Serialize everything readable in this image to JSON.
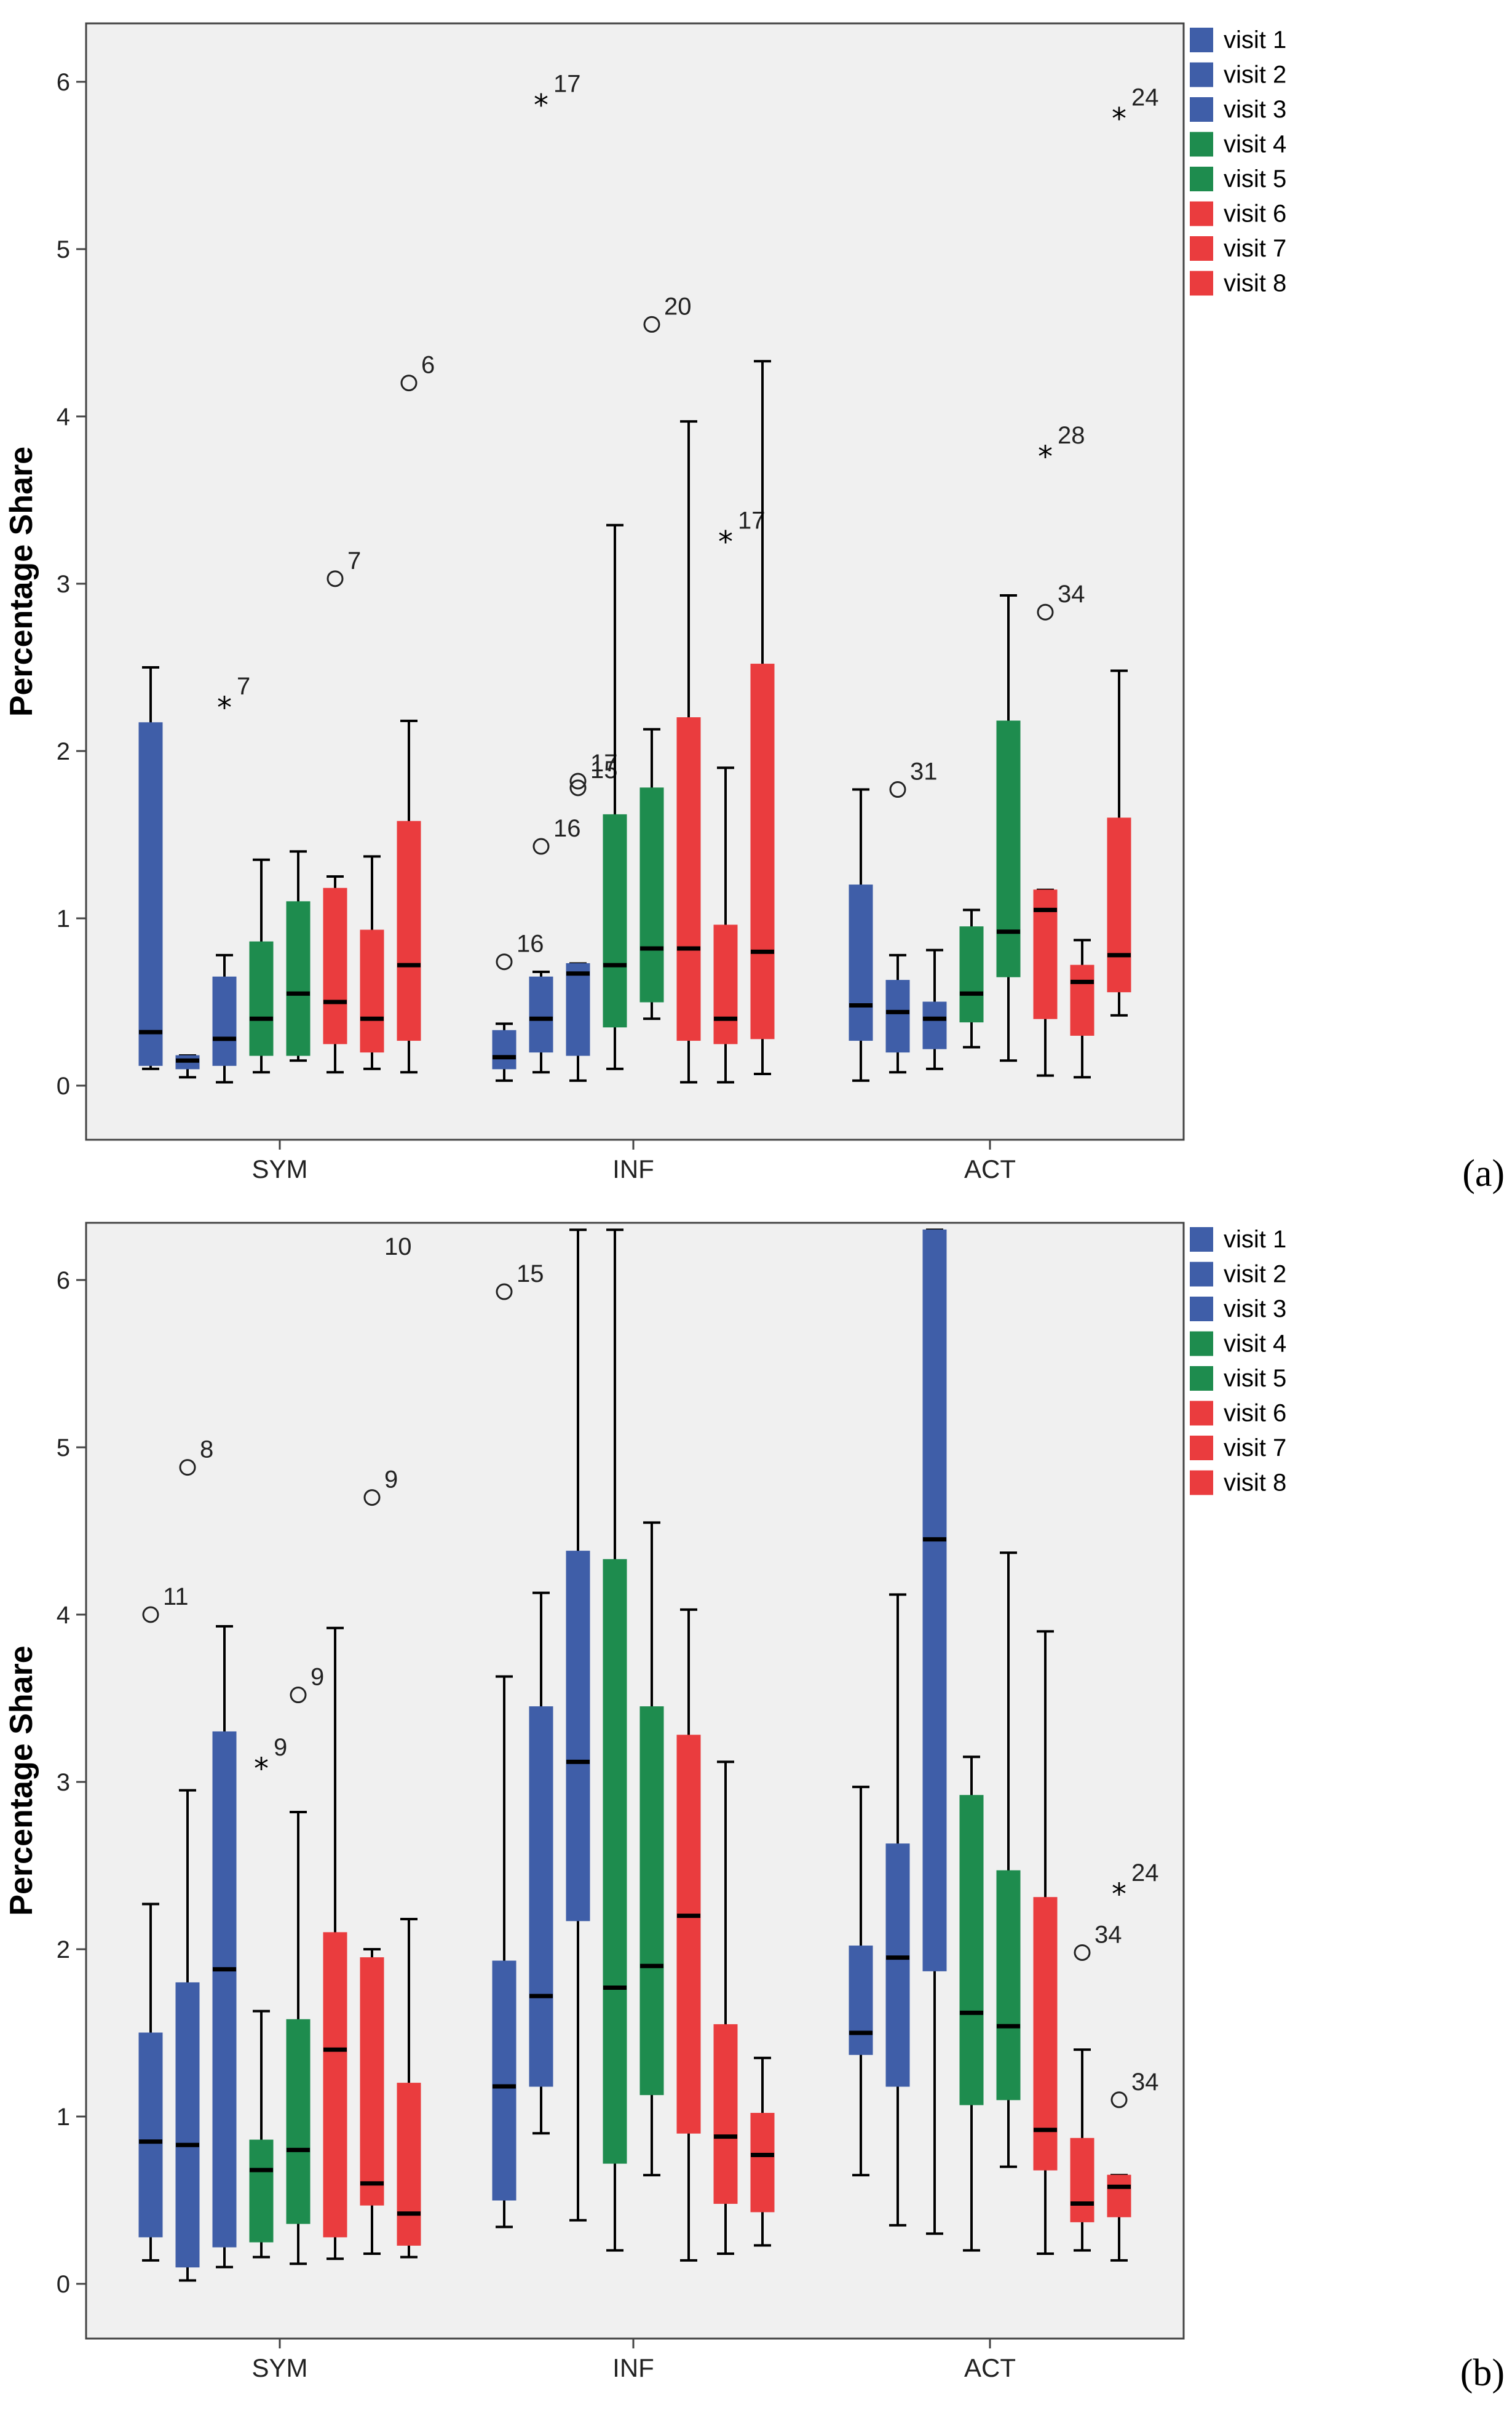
{
  "figure": {
    "colors": {
      "blue": "#3f5ea8",
      "green": "#1e8c4e",
      "red": "#ea3c3e",
      "plot_background": "#f0f0f0",
      "frame": "#444444"
    },
    "legend_labels": [
      "visit 1",
      "visit 2",
      "visit 3",
      "visit 4",
      "visit 5",
      "visit 6",
      "visit 7",
      "visit 8"
    ]
  },
  "chart_data": [
    {
      "type": "boxplot",
      "panel_label": "(a)",
      "ylabel": "Percentage Share",
      "ylim": [
        -0.3,
        6.3
      ],
      "yticks": [
        "0",
        "1",
        "2",
        "3",
        "4",
        "5",
        "6"
      ],
      "categories": [
        "SYM",
        "INF",
        "ACT"
      ],
      "legend": [
        "visit 1",
        "visit 2",
        "visit 3",
        "visit 4",
        "visit 5",
        "visit 6",
        "visit 7",
        "visit 8"
      ],
      "groups": [
        {
          "category": "SYM",
          "boxes": [
            {
              "name": "visit 1",
              "color": "#3f5ea8",
              "wlo": 0.1,
              "q1": 0.12,
              "med": 0.32,
              "q3": 2.17,
              "whi": 2.5,
              "outliers": []
            },
            {
              "name": "visit 2",
              "color": "#3f5ea8",
              "wlo": 0.05,
              "q1": 0.1,
              "med": 0.15,
              "q3": 0.18,
              "whi": 0.18,
              "outliers": []
            },
            {
              "name": "visit 3",
              "color": "#3f5ea8",
              "wlo": 0.02,
              "q1": 0.12,
              "med": 0.28,
              "q3": 0.65,
              "whi": 0.78,
              "outliers": [
                {
                  "y": 2.28,
                  "marker": "star",
                  "label": "7"
                }
              ]
            },
            {
              "name": "visit 4",
              "color": "#1e8c4e",
              "wlo": 0.08,
              "q1": 0.18,
              "med": 0.4,
              "q3": 0.86,
              "whi": 1.35,
              "outliers": []
            },
            {
              "name": "visit 5",
              "color": "#1e8c4e",
              "wlo": 0.15,
              "q1": 0.18,
              "med": 0.55,
              "q3": 1.1,
              "whi": 1.4,
              "outliers": []
            },
            {
              "name": "visit 6",
              "color": "#ea3c3e",
              "wlo": 0.08,
              "q1": 0.25,
              "med": 0.5,
              "q3": 1.18,
              "whi": 1.25,
              "outliers": [
                {
                  "y": 3.03,
                  "marker": "circle",
                  "label": "7"
                }
              ]
            },
            {
              "name": "visit 7",
              "color": "#ea3c3e",
              "wlo": 0.1,
              "q1": 0.2,
              "med": 0.4,
              "q3": 0.93,
              "whi": 1.37,
              "outliers": []
            },
            {
              "name": "visit 8",
              "color": "#ea3c3e",
              "wlo": 0.08,
              "q1": 0.27,
              "med": 0.72,
              "q3": 1.58,
              "whi": 2.18,
              "outliers": [
                {
                  "y": 4.2,
                  "marker": "circle",
                  "label": "6"
                }
              ]
            }
          ]
        },
        {
          "category": "INF",
          "boxes": [
            {
              "name": "visit 1",
              "color": "#3f5ea8",
              "wlo": 0.03,
              "q1": 0.1,
              "med": 0.17,
              "q3": 0.33,
              "whi": 0.37,
              "outliers": [
                {
                  "y": 0.74,
                  "marker": "circle",
                  "label": "16"
                }
              ]
            },
            {
              "name": "visit 2",
              "color": "#3f5ea8",
              "wlo": 0.08,
              "q1": 0.2,
              "med": 0.4,
              "q3": 0.65,
              "whi": 0.68,
              "outliers": [
                {
                  "y": 1.43,
                  "marker": "circle",
                  "label": "16"
                },
                {
                  "y": 5.88,
                  "marker": "star",
                  "label": "17"
                }
              ]
            },
            {
              "name": "visit 3",
              "color": "#3f5ea8",
              "wlo": 0.03,
              "q1": 0.18,
              "med": 0.67,
              "q3": 0.73,
              "whi": 0.73,
              "outliers": [
                {
                  "y": 1.78,
                  "marker": "circle",
                  "label": "15"
                },
                {
                  "y": 1.82,
                  "marker": "circle",
                  "label": "17"
                }
              ]
            },
            {
              "name": "visit 4",
              "color": "#1e8c4e",
              "wlo": 0.1,
              "q1": 0.35,
              "med": 0.72,
              "q3": 1.62,
              "whi": 3.35,
              "outliers": []
            },
            {
              "name": "visit 5",
              "color": "#1e8c4e",
              "wlo": 0.4,
              "q1": 0.5,
              "med": 0.82,
              "q3": 1.78,
              "whi": 2.13,
              "outliers": [
                {
                  "y": 4.55,
                  "marker": "circle",
                  "label": "20"
                }
              ]
            },
            {
              "name": "visit 6",
              "color": "#ea3c3e",
              "wlo": 0.02,
              "q1": 0.27,
              "med": 0.82,
              "q3": 2.2,
              "whi": 3.97,
              "outliers": []
            },
            {
              "name": "visit 7",
              "color": "#ea3c3e",
              "wlo": 0.02,
              "q1": 0.25,
              "med": 0.4,
              "q3": 0.96,
              "whi": 1.9,
              "outliers": [
                {
                  "y": 3.27,
                  "marker": "star",
                  "label": "17"
                }
              ]
            },
            {
              "name": "visit 8",
              "color": "#ea3c3e",
              "wlo": 0.07,
              "q1": 0.28,
              "med": 0.8,
              "q3": 2.52,
              "whi": 4.33,
              "outliers": []
            }
          ]
        },
        {
          "category": "ACT",
          "boxes": [
            {
              "name": "visit 1",
              "color": "#3f5ea8",
              "wlo": 0.03,
              "q1": 0.27,
              "med": 0.48,
              "q3": 1.2,
              "whi": 1.77,
              "outliers": []
            },
            {
              "name": "visit 2",
              "color": "#3f5ea8",
              "wlo": 0.08,
              "q1": 0.2,
              "med": 0.44,
              "q3": 0.63,
              "whi": 0.78,
              "outliers": [
                {
                  "y": 1.77,
                  "marker": "circle",
                  "label": "31"
                }
              ]
            },
            {
              "name": "visit 3",
              "color": "#3f5ea8",
              "wlo": 0.1,
              "q1": 0.22,
              "med": 0.4,
              "q3": 0.5,
              "whi": 0.81,
              "outliers": []
            },
            {
              "name": "visit 4",
              "color": "#1e8c4e",
              "wlo": 0.23,
              "q1": 0.38,
              "med": 0.55,
              "q3": 0.95,
              "whi": 1.05,
              "outliers": []
            },
            {
              "name": "visit 5",
              "color": "#1e8c4e",
              "wlo": 0.15,
              "q1": 0.65,
              "med": 0.92,
              "q3": 2.18,
              "whi": 2.93,
              "outliers": []
            },
            {
              "name": "visit 6",
              "color": "#ea3c3e",
              "wlo": 0.06,
              "q1": 0.4,
              "med": 1.05,
              "q3": 1.17,
              "whi": 1.17,
              "outliers": [
                {
                  "y": 2.83,
                  "marker": "circle",
                  "label": "34"
                },
                {
                  "y": 3.78,
                  "marker": "star",
                  "label": "28"
                }
              ]
            },
            {
              "name": "visit 7",
              "color": "#ea3c3e",
              "wlo": 0.05,
              "q1": 0.3,
              "med": 0.62,
              "q3": 0.72,
              "whi": 0.87,
              "outliers": []
            },
            {
              "name": "visit 8",
              "color": "#ea3c3e",
              "wlo": 0.42,
              "q1": 0.56,
              "med": 0.78,
              "q3": 1.6,
              "whi": 2.48,
              "outliers": [
                {
                  "y": 5.8,
                  "marker": "star",
                  "label": "24"
                }
              ]
            }
          ]
        }
      ],
      "edge_labels": []
    },
    {
      "type": "boxplot",
      "panel_label": "(b)",
      "ylabel": "Percentage Share",
      "ylim": [
        -0.3,
        6.3
      ],
      "yticks": [
        "0",
        "1",
        "2",
        "3",
        "4",
        "5",
        "6"
      ],
      "categories": [
        "SYM",
        "INF",
        "ACT"
      ],
      "legend": [
        "visit 1",
        "visit 2",
        "visit 3",
        "visit 4",
        "visit 5",
        "visit 6",
        "visit 7",
        "visit 8"
      ],
      "groups": [
        {
          "category": "SYM",
          "boxes": [
            {
              "name": "visit 1",
              "color": "#3f5ea8",
              "wlo": 0.14,
              "q1": 0.28,
              "med": 0.85,
              "q3": 1.5,
              "whi": 2.27,
              "outliers": [
                {
                  "y": 4.0,
                  "marker": "circle",
                  "label": "11"
                }
              ]
            },
            {
              "name": "visit 2",
              "color": "#3f5ea8",
              "wlo": 0.02,
              "q1": 0.1,
              "med": 0.83,
              "q3": 1.8,
              "whi": 2.95,
              "outliers": [
                {
                  "y": 4.88,
                  "marker": "circle",
                  "label": "8"
                }
              ]
            },
            {
              "name": "visit 3",
              "color": "#3f5ea8",
              "wlo": 0.1,
              "q1": 0.22,
              "med": 1.88,
              "q3": 3.3,
              "whi": 3.93,
              "outliers": []
            },
            {
              "name": "visit 4",
              "color": "#1e8c4e",
              "wlo": 0.16,
              "q1": 0.25,
              "med": 0.68,
              "q3": 0.86,
              "whi": 1.63,
              "outliers": [
                {
                  "y": 3.1,
                  "marker": "star",
                  "label": "9"
                }
              ]
            },
            {
              "name": "visit 5",
              "color": "#1e8c4e",
              "wlo": 0.12,
              "q1": 0.36,
              "med": 0.8,
              "q3": 1.58,
              "whi": 2.82,
              "outliers": [
                {
                  "y": 3.52,
                  "marker": "circle",
                  "label": "9"
                }
              ]
            },
            {
              "name": "visit 6",
              "color": "#ea3c3e",
              "wlo": 0.15,
              "q1": 0.28,
              "med": 1.4,
              "q3": 2.1,
              "whi": 3.92,
              "outliers": []
            },
            {
              "name": "visit 7",
              "color": "#ea3c3e",
              "wlo": 0.18,
              "q1": 0.47,
              "med": 0.6,
              "q3": 1.95,
              "whi": 2.0,
              "outliers": [
                {
                  "y": 4.7,
                  "marker": "circle",
                  "label": "9"
                }
              ]
            },
            {
              "name": "visit 8",
              "color": "#ea3c3e",
              "wlo": 0.16,
              "q1": 0.23,
              "med": 0.42,
              "q3": 1.2,
              "whi": 2.18,
              "outliers": []
            }
          ]
        },
        {
          "category": "INF",
          "boxes": [
            {
              "name": "visit 1",
              "color": "#3f5ea8",
              "wlo": 0.34,
              "q1": 0.5,
              "med": 1.18,
              "q3": 1.93,
              "whi": 3.63,
              "outliers": [
                {
                  "y": 5.93,
                  "marker": "circle",
                  "label": "15"
                }
              ]
            },
            {
              "name": "visit 2",
              "color": "#3f5ea8",
              "wlo": 0.9,
              "q1": 1.18,
              "med": 1.72,
              "q3": 3.45,
              "whi": 4.13,
              "outliers": []
            },
            {
              "name": "visit 3",
              "color": "#3f5ea8",
              "wlo": 0.38,
              "q1": 2.17,
              "med": 3.12,
              "q3": 4.38,
              "whi": 6.3,
              "outliers": []
            },
            {
              "name": "visit 4",
              "color": "#1e8c4e",
              "wlo": 0.2,
              "q1": 0.72,
              "med": 1.77,
              "q3": 4.33,
              "whi": 6.3,
              "outliers": []
            },
            {
              "name": "visit 5",
              "color": "#1e8c4e",
              "wlo": 0.65,
              "q1": 1.13,
              "med": 1.9,
              "q3": 3.45,
              "whi": 4.55,
              "outliers": []
            },
            {
              "name": "visit 6",
              "color": "#ea3c3e",
              "wlo": 0.14,
              "q1": 0.9,
              "med": 2.2,
              "q3": 3.28,
              "whi": 4.03,
              "outliers": []
            },
            {
              "name": "visit 7",
              "color": "#ea3c3e",
              "wlo": 0.18,
              "q1": 0.48,
              "med": 0.88,
              "q3": 1.55,
              "whi": 3.12,
              "outliers": []
            },
            {
              "name": "visit 8",
              "color": "#ea3c3e",
              "wlo": 0.23,
              "q1": 0.43,
              "med": 0.77,
              "q3": 1.02,
              "whi": 1.35,
              "outliers": []
            }
          ]
        },
        {
          "category": "ACT",
          "boxes": [
            {
              "name": "visit 1",
              "color": "#3f5ea8",
              "wlo": 0.65,
              "q1": 1.37,
              "med": 1.5,
              "q3": 2.02,
              "whi": 2.97,
              "outliers": []
            },
            {
              "name": "visit 2",
              "color": "#3f5ea8",
              "wlo": 0.35,
              "q1": 1.18,
              "med": 1.95,
              "q3": 2.63,
              "whi": 4.12,
              "outliers": []
            },
            {
              "name": "visit 3",
              "color": "#3f5ea8",
              "wlo": 0.3,
              "q1": 1.87,
              "med": 4.45,
              "q3": 6.3,
              "whi": 6.3,
              "outliers": []
            },
            {
              "name": "visit 4",
              "color": "#1e8c4e",
              "wlo": 0.2,
              "q1": 1.07,
              "med": 1.62,
              "q3": 2.92,
              "whi": 3.15,
              "outliers": []
            },
            {
              "name": "visit 5",
              "color": "#1e8c4e",
              "wlo": 0.7,
              "q1": 1.1,
              "med": 1.54,
              "q3": 2.47,
              "whi": 4.37,
              "outliers": []
            },
            {
              "name": "visit 6",
              "color": "#ea3c3e",
              "wlo": 0.18,
              "q1": 0.68,
              "med": 0.92,
              "q3": 2.31,
              "whi": 3.9,
              "outliers": []
            },
            {
              "name": "visit 7",
              "color": "#ea3c3e",
              "wlo": 0.2,
              "q1": 0.37,
              "med": 0.48,
              "q3": 0.87,
              "whi": 1.4,
              "outliers": [
                {
                  "y": 1.98,
                  "marker": "circle",
                  "label": "34"
                }
              ]
            },
            {
              "name": "visit 8",
              "color": "#ea3c3e",
              "wlo": 0.14,
              "q1": 0.4,
              "med": 0.58,
              "q3": 0.65,
              "whi": 0.65,
              "outliers": [
                {
                  "y": 1.1,
                  "marker": "circle",
                  "label": "34"
                },
                {
                  "y": 2.35,
                  "marker": "star",
                  "label": "24"
                }
              ]
            }
          ]
        }
      ],
      "edge_labels": [
        {
          "category_index": 0,
          "box_index": 6,
          "label": "10",
          "y": 6.45
        }
      ]
    }
  ]
}
